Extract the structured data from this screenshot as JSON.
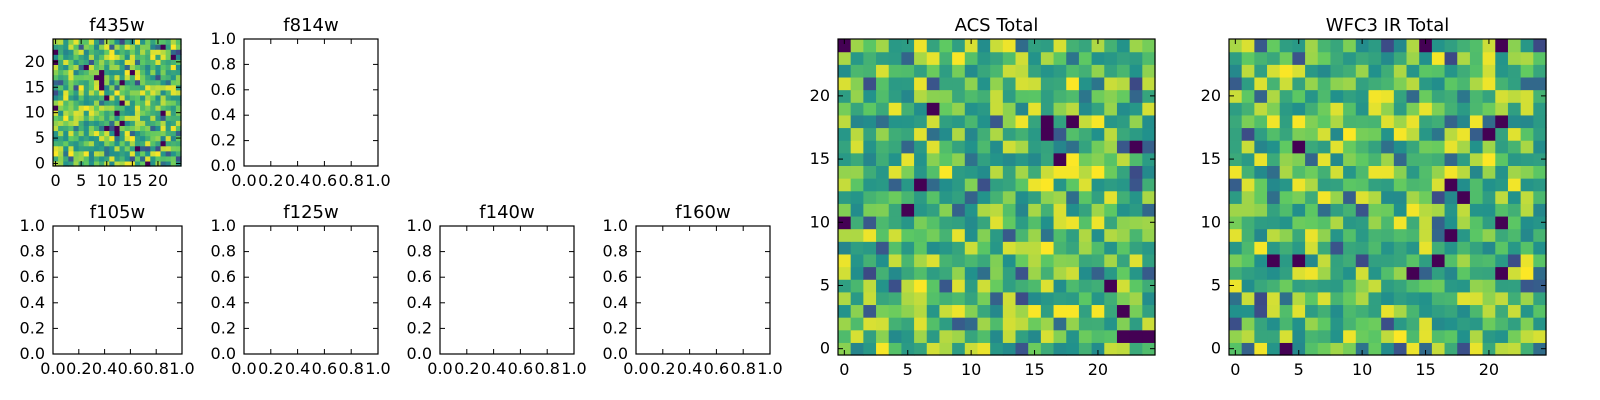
{
  "chart_data": [
    {
      "id": "f435w",
      "type": "heatmap",
      "title": "f435w",
      "xlim": [
        -0.5,
        24.5
      ],
      "ylim": [
        -0.5,
        24.5
      ],
      "x_ticks": [
        0,
        5,
        10,
        15,
        20
      ],
      "x_tick_labels": [
        "0",
        "5",
        "10",
        "15",
        "20"
      ],
      "y_ticks": [
        0,
        5,
        10,
        15,
        20
      ],
      "y_tick_labels": [
        "0",
        "5",
        "10",
        "15",
        "20"
      ],
      "grid_size": [
        25,
        25
      ],
      "colormap": "viridis",
      "values": "randomized 25x25 grid (mostly green/yellow, sparse dark purple cells)"
    },
    {
      "id": "f814w",
      "type": "heatmap",
      "title": "f814w",
      "xlim": [
        0,
        1
      ],
      "ylim": [
        0,
        1
      ],
      "x_ticks": [
        0,
        0.2,
        0.4,
        0.6,
        0.8,
        1.0
      ],
      "x_tick_labels": [
        "0.0",
        "0.2",
        "0.4",
        "0.6",
        "0.8",
        "1.0"
      ],
      "y_ticks": [
        0,
        0.2,
        0.4,
        0.6,
        0.8,
        1.0
      ],
      "y_tick_labels": [
        "0.0",
        "0.2",
        "0.4",
        "0.6",
        "0.8",
        "1.0"
      ],
      "values": []
    },
    {
      "id": "f105w",
      "type": "heatmap",
      "title": "f105w",
      "xlim": [
        0,
        1
      ],
      "ylim": [
        0,
        1
      ],
      "x_ticks": [
        0,
        0.2,
        0.4,
        0.6,
        0.8,
        1.0
      ],
      "x_tick_labels": [
        "0.0",
        "0.2",
        "0.4",
        "0.6",
        "0.8",
        "1.0"
      ],
      "y_ticks": [
        0,
        0.2,
        0.4,
        0.6,
        0.8,
        1.0
      ],
      "y_tick_labels": [
        "0.0",
        "0.2",
        "0.4",
        "0.6",
        "0.8",
        "1.0"
      ],
      "values": []
    },
    {
      "id": "f125w",
      "type": "heatmap",
      "title": "f125w",
      "xlim": [
        0,
        1
      ],
      "ylim": [
        0,
        1
      ],
      "x_ticks": [
        0,
        0.2,
        0.4,
        0.6,
        0.8,
        1.0
      ],
      "x_tick_labels": [
        "0.0",
        "0.2",
        "0.4",
        "0.6",
        "0.8",
        "1.0"
      ],
      "y_ticks": [
        0,
        0.2,
        0.4,
        0.6,
        0.8,
        1.0
      ],
      "y_tick_labels": [
        "0.0",
        "0.2",
        "0.4",
        "0.6",
        "0.8",
        "1.0"
      ],
      "values": []
    },
    {
      "id": "f140w",
      "type": "heatmap",
      "title": "f140w",
      "xlim": [
        0,
        1
      ],
      "ylim": [
        0,
        1
      ],
      "x_ticks": [
        0,
        0.2,
        0.4,
        0.6,
        0.8,
        1.0
      ],
      "x_tick_labels": [
        "0.0",
        "0.2",
        "0.4",
        "0.6",
        "0.8",
        "1.0"
      ],
      "y_ticks": [
        0,
        0.2,
        0.4,
        0.6,
        0.8,
        1.0
      ],
      "y_tick_labels": [
        "0.0",
        "0.2",
        "0.4",
        "0.6",
        "0.8",
        "1.0"
      ],
      "values": []
    },
    {
      "id": "f160w",
      "type": "heatmap",
      "title": "f160w",
      "xlim": [
        0,
        1
      ],
      "ylim": [
        0,
        1
      ],
      "x_ticks": [
        0,
        0.2,
        0.4,
        0.6,
        0.8,
        1.0
      ],
      "x_tick_labels": [
        "0.0",
        "0.2",
        "0.4",
        "0.6",
        "0.8",
        "1.0"
      ],
      "y_ticks": [
        0,
        0.2,
        0.4,
        0.6,
        0.8,
        1.0
      ],
      "y_tick_labels": [
        "0.0",
        "0.2",
        "0.4",
        "0.6",
        "0.8",
        "1.0"
      ],
      "values": []
    },
    {
      "id": "acs-total",
      "type": "heatmap",
      "title": "ACS Total",
      "xlim": [
        -0.5,
        24.5
      ],
      "ylim": [
        -0.5,
        24.5
      ],
      "x_ticks": [
        0,
        5,
        10,
        15,
        20
      ],
      "x_tick_labels": [
        "0",
        "5",
        "10",
        "15",
        "20"
      ],
      "y_ticks": [
        0,
        5,
        10,
        15,
        20
      ],
      "y_tick_labels": [
        "0",
        "5",
        "10",
        "15",
        "20"
      ],
      "grid_size": [
        25,
        25
      ],
      "colormap": "viridis",
      "values": "randomized 25x25 grid (mostly green/yellow, sparse dark purple cells)"
    },
    {
      "id": "wfc3-ir-total",
      "type": "heatmap",
      "title": "WFC3 IR Total",
      "xlim": [
        -0.5,
        24.5
      ],
      "ylim": [
        -0.5,
        24.5
      ],
      "x_ticks": [
        0,
        5,
        10,
        15,
        20
      ],
      "x_tick_labels": [
        "0",
        "5",
        "10",
        "15",
        "20"
      ],
      "y_ticks": [
        0,
        5,
        10,
        15,
        20
      ],
      "y_tick_labels": [
        "0",
        "5",
        "10",
        "15",
        "20"
      ],
      "grid_size": [
        25,
        25
      ],
      "colormap": "viridis",
      "values": "randomized 25x25 grid (mostly green/yellow, sparse dark purple cells)"
    }
  ],
  "colors": {
    "viridis_low": "#440154",
    "viridis_midlow": "#31688e",
    "viridis_mid": "#21918c",
    "viridis_midhigh": "#35b779",
    "viridis_high": "#fde725"
  }
}
